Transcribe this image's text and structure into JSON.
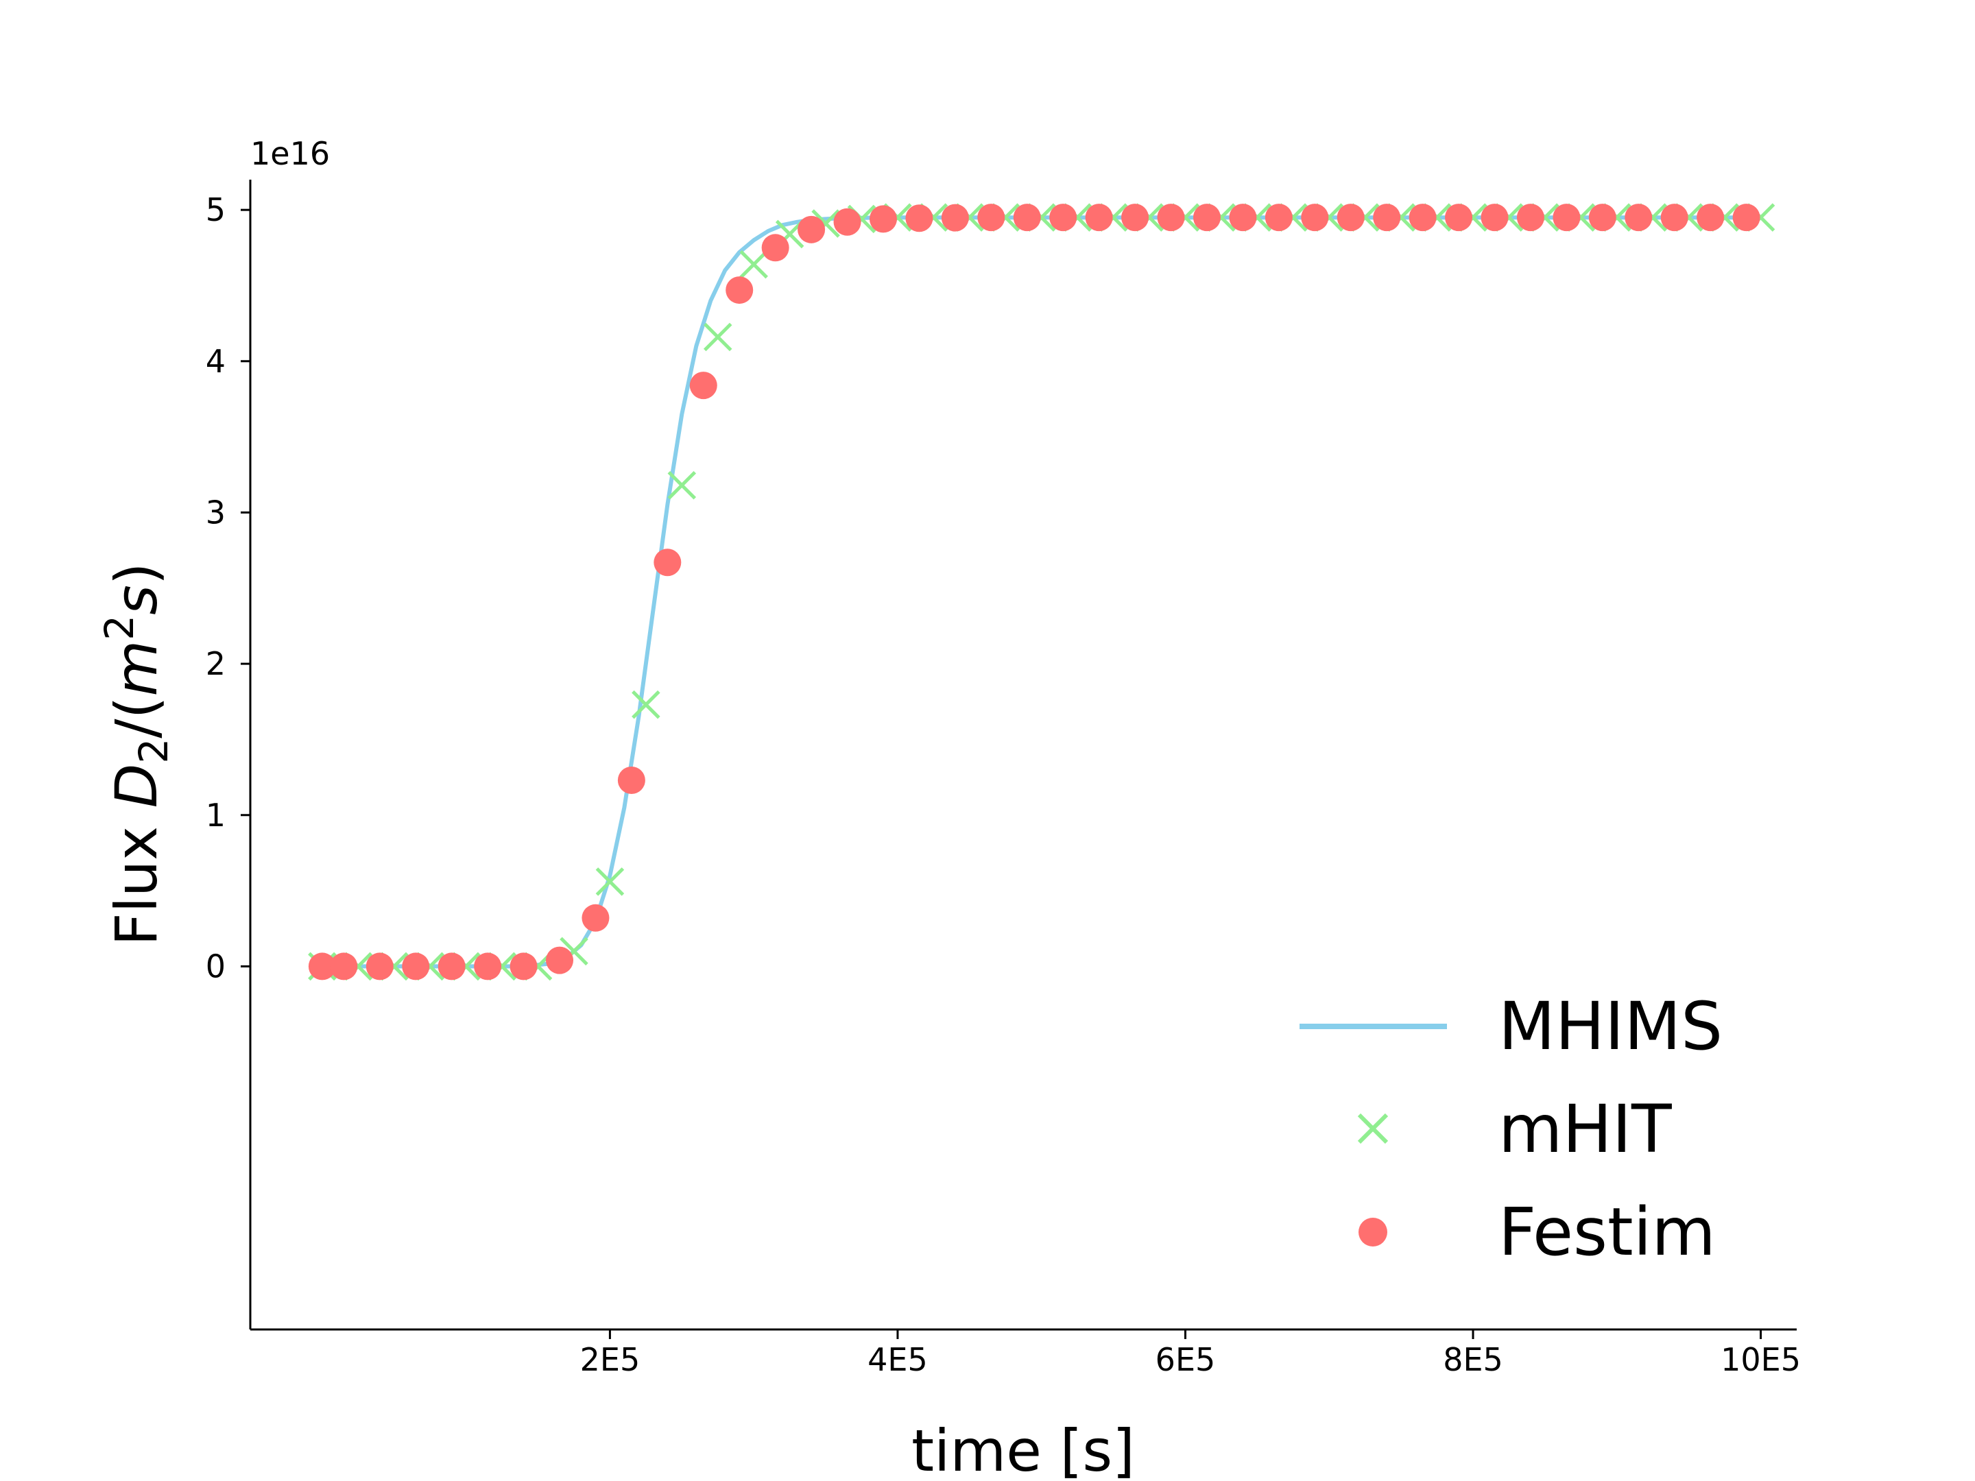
{
  "chart_data": {
    "type": "line",
    "title": "",
    "xlabel": "time [s]",
    "ylabel": "Flux D2/(m2s)",
    "ylabel_parts": {
      "pre": "Flux ",
      "d": "D",
      "sub": "2",
      "mid": "/(",
      "m": "m",
      "sup": "2",
      "s": "s",
      "post": ")"
    },
    "y_offset_label": "1e16",
    "xlim": [
      -50000,
      1025000
    ],
    "ylim": [
      -2.4,
      5.2
    ],
    "x_ticks": [
      200000,
      400000,
      600000,
      800000,
      1000000
    ],
    "x_tick_labels": [
      "2E5",
      "4E5",
      "6E5",
      "8E5",
      "10E5"
    ],
    "y_ticks": [
      0,
      1,
      2,
      3,
      4,
      5
    ],
    "y_tick_labels": [
      "0",
      "1",
      "2",
      "3",
      "4",
      "5"
    ],
    "grid": false,
    "legend_position": "lower-right",
    "series": [
      {
        "name": "MHIMS",
        "marker": "line",
        "color": "#87ceeb",
        "x": [
          0,
          140000,
          160000,
          170000,
          180000,
          190000,
          200000,
          210000,
          220000,
          230000,
          240000,
          250000,
          260000,
          270000,
          280000,
          290000,
          300000,
          310000,
          320000,
          330000,
          340000,
          350000,
          360000,
          380000,
          400000,
          450000,
          1000000
        ],
        "y": [
          0,
          0,
          0.02,
          0.06,
          0.14,
          0.3,
          0.6,
          1.05,
          1.65,
          2.35,
          3.05,
          3.65,
          4.1,
          4.4,
          4.6,
          4.72,
          4.8,
          4.86,
          4.9,
          4.92,
          4.935,
          4.94,
          4.945,
          4.948,
          4.95,
          4.95,
          4.95
        ]
      },
      {
        "name": "mHIT",
        "marker": "x",
        "color": "#90ee90",
        "x": [
          0,
          25000,
          50000,
          75000,
          100000,
          125000,
          150000,
          175000,
          200000,
          225000,
          250000,
          275000,
          300000,
          325000,
          350000,
          375000,
          400000,
          425000,
          450000,
          475000,
          500000,
          525000,
          550000,
          575000,
          600000,
          625000,
          650000,
          675000,
          700000,
          725000,
          750000,
          775000,
          800000,
          825000,
          850000,
          875000,
          900000,
          925000,
          950000,
          975000,
          1000000
        ],
        "y": [
          0,
          0,
          0,
          0,
          0,
          0,
          0,
          0.1,
          0.56,
          1.73,
          3.18,
          4.16,
          4.64,
          4.84,
          4.91,
          4.94,
          4.95,
          4.95,
          4.95,
          4.95,
          4.95,
          4.95,
          4.95,
          4.95,
          4.95,
          4.95,
          4.95,
          4.95,
          4.95,
          4.95,
          4.95,
          4.95,
          4.95,
          4.95,
          4.95,
          4.95,
          4.95,
          4.95,
          4.95,
          4.95,
          4.95
        ]
      },
      {
        "name": "Festim",
        "marker": "circle",
        "color": "#ff6f6f",
        "x": [
          0,
          15000,
          40000,
          65000,
          90000,
          115000,
          140000,
          165000,
          190000,
          215000,
          240000,
          265000,
          290000,
          315000,
          340000,
          365000,
          390000,
          415000,
          440000,
          465000,
          490000,
          515000,
          540000,
          565000,
          590000,
          615000,
          640000,
          665000,
          690000,
          715000,
          740000,
          765000,
          790000,
          815000,
          840000,
          865000,
          890000,
          915000,
          940000,
          965000,
          990000
        ],
        "y": [
          0,
          0,
          0,
          0,
          0,
          0,
          0,
          0.04,
          0.32,
          1.23,
          2.67,
          3.84,
          4.47,
          4.75,
          4.87,
          4.92,
          4.94,
          4.945,
          4.948,
          4.95,
          4.95,
          4.95,
          4.95,
          4.95,
          4.95,
          4.95,
          4.95,
          4.95,
          4.95,
          4.95,
          4.95,
          4.95,
          4.95,
          4.95,
          4.95,
          4.95,
          4.95,
          4.95,
          4.95,
          4.95,
          4.95
        ]
      }
    ]
  }
}
